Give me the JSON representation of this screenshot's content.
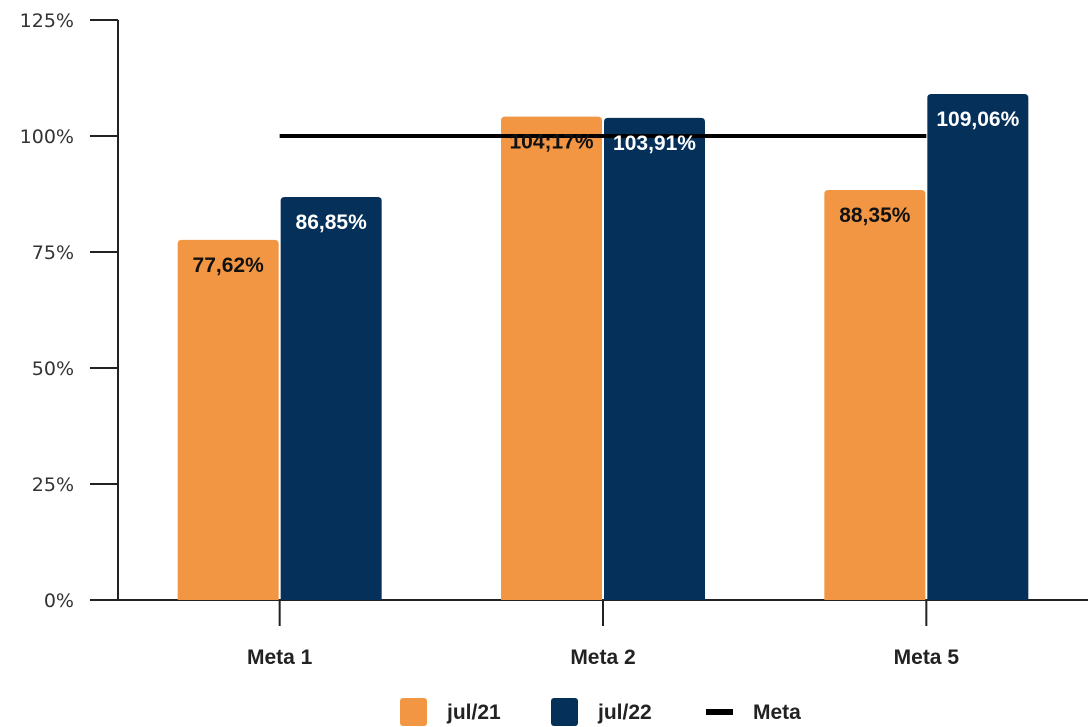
{
  "chart_data": {
    "type": "bar",
    "categories": [
      "Meta 1",
      "Meta 2",
      "Meta 5"
    ],
    "series": [
      {
        "name": "jul/21",
        "color": "#F39644",
        "label_color": "#111111",
        "values": [
          77.62,
          104.17,
          88.35
        ],
        "labels": [
          "77,62%",
          "104;17%",
          "88,35%"
        ]
      },
      {
        "name": "jul/22",
        "color": "#04305A",
        "label_color": "#ffffff",
        "values": [
          86.85,
          103.91,
          109.06
        ],
        "labels": [
          "86,85%",
          "103,91%",
          "109,06%"
        ]
      }
    ],
    "reference_line": {
      "name": "Meta",
      "value": 100,
      "color": "#000000"
    },
    "ylim": [
      0,
      125
    ],
    "yticks": [
      "0%",
      "25%",
      "50%",
      "75%",
      "100%",
      "125%"
    ],
    "grid": false,
    "legend": "bottom-center"
  }
}
